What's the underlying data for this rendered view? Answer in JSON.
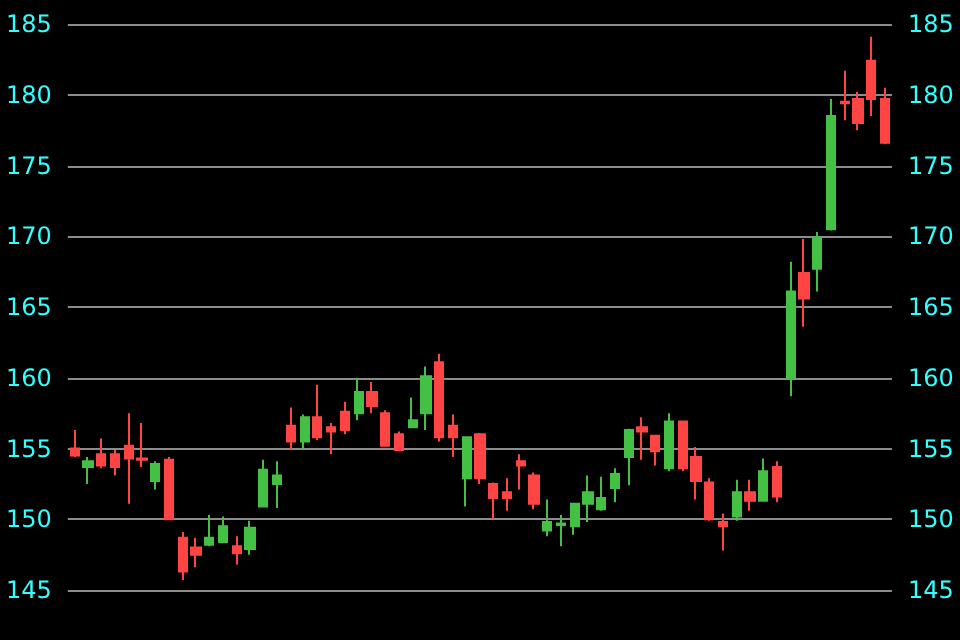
{
  "chart_data": {
    "type": "candlestick",
    "categories": [
      null,
      null,
      null,
      null,
      null,
      null,
      null,
      null,
      null,
      null,
      null,
      null,
      null,
      null,
      null,
      null,
      null,
      null,
      null,
      null,
      null,
      null,
      null,
      null,
      null,
      null,
      null,
      null,
      null,
      null,
      null,
      null,
      null,
      null,
      null,
      null,
      null,
      null,
      null,
      null,
      null,
      null,
      null,
      null,
      null,
      null,
      null,
      null,
      null,
      null,
      null,
      null,
      null,
      null,
      null,
      null,
      null,
      null,
      null,
      null,
      null
    ],
    "ohlc": [
      [
        155.0,
        156.3,
        154.4,
        154.5
      ],
      [
        153.7,
        154.4,
        152.5,
        154.1
      ],
      [
        154.6,
        155.7,
        153.6,
        153.8
      ],
      [
        154.6,
        154.9,
        153.1,
        153.7
      ],
      [
        155.2,
        157.5,
        151.1,
        154.3
      ],
      [
        154.3,
        156.8,
        153.7,
        154.2
      ],
      [
        152.7,
        154.1,
        152.1,
        153.9
      ],
      [
        154.2,
        154.4,
        150.0,
        150.0
      ],
      [
        148.7,
        149.1,
        145.7,
        146.3
      ],
      [
        148.0,
        148.7,
        146.6,
        147.5
      ],
      [
        148.2,
        150.3,
        148.1,
        148.7
      ],
      [
        148.4,
        150.2,
        148.3,
        149.5
      ],
      [
        148.1,
        148.8,
        146.8,
        147.6
      ],
      [
        147.9,
        149.9,
        147.5,
        149.4
      ],
      [
        150.9,
        154.2,
        150.9,
        153.5
      ],
      [
        152.5,
        154.1,
        150.8,
        153.1
      ],
      [
        156.6,
        157.9,
        154.9,
        155.5
      ],
      [
        155.5,
        157.4,
        154.9,
        157.2
      ],
      [
        157.2,
        159.5,
        155.6,
        155.8
      ],
      [
        156.5,
        156.8,
        154.6,
        156.2
      ],
      [
        157.6,
        158.3,
        156.0,
        156.3
      ],
      [
        157.5,
        160.0,
        157.0,
        159.0
      ],
      [
        159.0,
        159.7,
        157.5,
        158.0
      ],
      [
        157.5,
        157.7,
        155.2,
        155.2
      ],
      [
        156.0,
        156.2,
        154.8,
        154.9
      ],
      [
        156.5,
        158.6,
        156.5,
        157.0
      ],
      [
        157.5,
        160.8,
        156.3,
        160.1
      ],
      [
        161.1,
        161.7,
        155.5,
        155.8
      ],
      [
        156.6,
        157.4,
        154.4,
        155.8
      ],
      [
        152.9,
        155.8,
        150.9,
        155.8
      ],
      [
        156.0,
        156.1,
        152.5,
        152.9
      ],
      [
        152.5,
        152.6,
        150.0,
        151.5
      ],
      [
        151.9,
        152.9,
        150.6,
        151.5
      ],
      [
        154.1,
        154.6,
        152.1,
        153.8
      ],
      [
        153.1,
        153.3,
        150.7,
        151.1
      ],
      [
        149.2,
        151.4,
        148.8,
        149.8
      ],
      [
        149.6,
        150.3,
        148.1,
        149.7
      ],
      [
        149.5,
        151.1,
        148.9,
        151.1
      ],
      [
        151.1,
        153.1,
        149.8,
        151.9
      ],
      [
        150.7,
        153.0,
        150.6,
        151.5
      ],
      [
        152.2,
        153.6,
        151.2,
        153.2
      ],
      [
        154.4,
        156.4,
        152.4,
        156.3
      ],
      [
        156.5,
        157.2,
        154.2,
        156.2
      ],
      [
        155.9,
        155.9,
        153.8,
        154.8
      ],
      [
        153.6,
        157.5,
        153.4,
        156.9
      ],
      [
        156.9,
        156.9,
        153.4,
        153.6
      ],
      [
        154.4,
        155.1,
        151.4,
        152.7
      ],
      [
        152.6,
        152.9,
        149.9,
        150.0
      ],
      [
        149.8,
        150.4,
        147.8,
        149.5
      ],
      [
        150.2,
        152.8,
        149.9,
        151.9
      ],
      [
        151.9,
        152.8,
        150.6,
        151.3
      ],
      [
        151.3,
        154.3,
        151.3,
        153.4
      ],
      [
        153.7,
        154.1,
        151.2,
        151.6
      ],
      [
        160.0,
        168.2,
        158.7,
        166.1
      ],
      [
        167.4,
        169.8,
        163.6,
        165.6
      ],
      [
        167.7,
        170.3,
        166.1,
        169.9
      ],
      [
        170.5,
        179.7,
        170.4,
        178.5
      ],
      [
        179.5,
        181.7,
        178.2,
        179.4
      ],
      [
        179.7,
        180.2,
        177.5,
        178.0
      ],
      [
        182.4,
        184.1,
        178.5,
        179.7
      ],
      [
        179.7,
        180.5,
        176.5,
        176.6
      ]
    ],
    "ylim": [
      145,
      185
    ],
    "yticks": [
      145,
      150,
      155,
      160,
      165,
      170,
      175,
      180,
      185
    ],
    "y2lim": [
      145,
      185
    ],
    "y2ticks": [
      145,
      150,
      155,
      160,
      165,
      170,
      175,
      180,
      185
    ],
    "grid": "y"
  }
}
